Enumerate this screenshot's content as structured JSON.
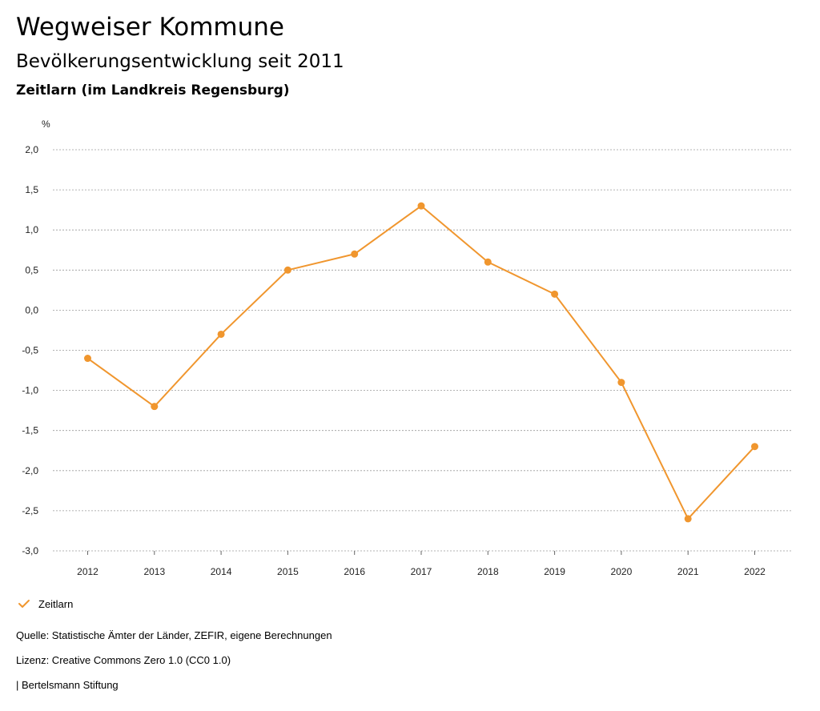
{
  "header": {
    "title": "Wegweiser Kommune",
    "subtitle": "Bevölkerungsentwicklung seit 2011",
    "region": "Zeitlarn (im Landkreis Regensburg)"
  },
  "footer": {
    "source": "Quelle: Statistische Ämter der Länder, ZEFIR, eigene Berechnungen",
    "license": "Lizenz: Creative Commons Zero 1.0 (CC0 1.0)",
    "publisher": "| Bertelsmann Stiftung"
  },
  "colors": {
    "series": "#f0962e",
    "grid": "#9a9a9a"
  },
  "chart_data": {
    "type": "line",
    "title": "Bevölkerungsentwicklung seit 2011",
    "ylabel": "%",
    "xlabel": "",
    "grid": true,
    "legend_position": "bottom-left",
    "ylim": [
      -3.0,
      2.0
    ],
    "yticks": [
      "2,0",
      "1,5",
      "1,0",
      "0,5",
      "0,0",
      "-0,5",
      "-1,0",
      "-1,5",
      "-2,0",
      "-2,5",
      "-3,0"
    ],
    "ytick_values": [
      2.0,
      1.5,
      1.0,
      0.5,
      0.0,
      -0.5,
      -1.0,
      -1.5,
      -2.0,
      -2.5,
      -3.0
    ],
    "categories": [
      "2012",
      "2013",
      "2014",
      "2015",
      "2016",
      "2017",
      "2018",
      "2019",
      "2020",
      "2021",
      "2022"
    ],
    "series": [
      {
        "name": "Zeitlarn",
        "values": [
          -0.6,
          -1.2,
          -0.3,
          0.5,
          0.7,
          1.3,
          0.6,
          0.2,
          -0.9,
          -2.6,
          -1.7
        ]
      }
    ]
  }
}
